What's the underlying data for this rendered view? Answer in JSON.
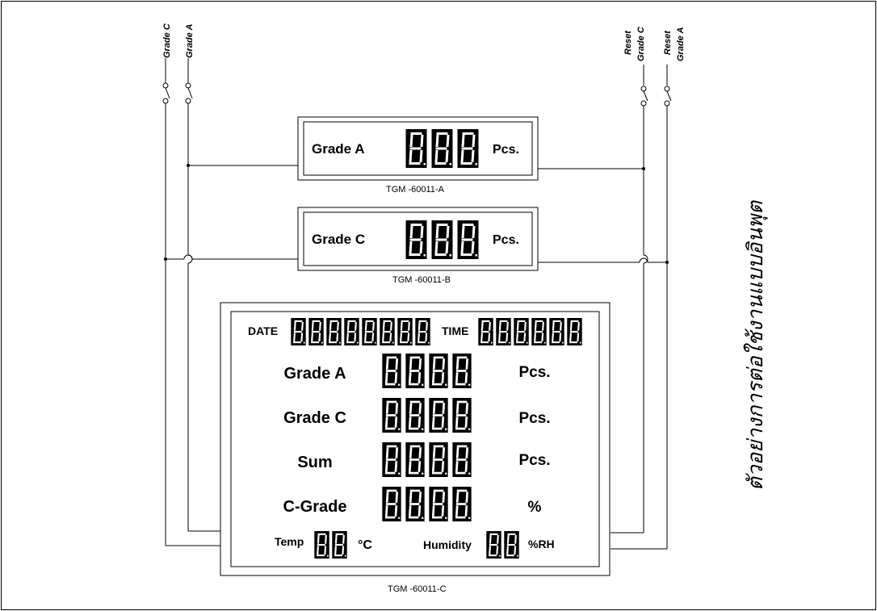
{
  "diagram": {
    "title_thai": "ตัวอย่างการต่อใช้งานแบบอินพุต",
    "switches": {
      "left": [
        "Grade C",
        "Grade A"
      ],
      "right": [
        {
          "line1": "Reset",
          "line2": "Grade C"
        },
        {
          "line1": "Reset",
          "line2": "Grade A"
        }
      ]
    },
    "display_a": {
      "label": "Grade A",
      "unit": "Pcs.",
      "model": "TGM -60011-A"
    },
    "display_b": {
      "label": "Grade C",
      "unit": "Pcs.",
      "model": "TGM -60011-B"
    },
    "display_c": {
      "model": "TGM -60011-C",
      "date_label": "DATE",
      "time_label": "TIME",
      "rows": [
        {
          "label": "Grade A",
          "unit": "Pcs."
        },
        {
          "label": "Grade C",
          "unit": "Pcs."
        },
        {
          "label": "Sum",
          "unit": "Pcs."
        },
        {
          "label": "C-Grade",
          "unit": "%"
        }
      ],
      "temp_label": "Temp",
      "temp_unit": "°C",
      "humidity_label": "Humidity",
      "humidity_unit": "%RH"
    }
  }
}
